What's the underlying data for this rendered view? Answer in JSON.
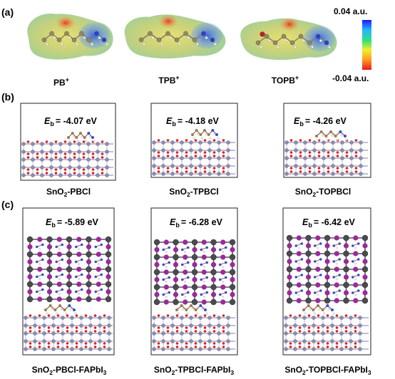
{
  "panel_labels": {
    "a": "(a)",
    "b": "(b)",
    "c": "(c)"
  },
  "colorbar": {
    "max_label": "0.04 a.u.",
    "min_label": "-0.04 a.u."
  },
  "molecules": [
    {
      "sup": "+",
      "base": "PB"
    },
    {
      "sup": "+",
      "base": "TPB"
    },
    {
      "sup": "+",
      "base": "TOPB"
    }
  ],
  "energy_symbol": "E",
  "energy_sub": "b",
  "panel_b": [
    {
      "energy": "= -4.07 eV",
      "cap_a": "SnO",
      "cap_sub": "2",
      "cap_b": "-PBCl"
    },
    {
      "energy": "= -4.18 eV",
      "cap_a": "SnO",
      "cap_sub": "2",
      "cap_b": "-TPBCl"
    },
    {
      "energy": "= -4.26 eV",
      "cap_a": "SnO",
      "cap_sub": "2",
      "cap_b": "-TOPBCl"
    }
  ],
  "panel_c": [
    {
      "energy": "= -5.89 eV",
      "cap_a": "SnO",
      "cap_sub": "2",
      "cap_b": "-PBCl-FAPbI",
      "cap_sub2": "3"
    },
    {
      "energy": "= -6.28 eV",
      "cap_a": "SnO",
      "cap_sub": "2",
      "cap_b": "-TPBCl-FAPbI",
      "cap_sub2": "3"
    },
    {
      "energy": "= -6.42 eV",
      "cap_a": "SnO",
      "cap_sub": "2",
      "cap_b": "-TOPBCl-FAPbI",
      "cap_sub2": "3"
    }
  ]
}
